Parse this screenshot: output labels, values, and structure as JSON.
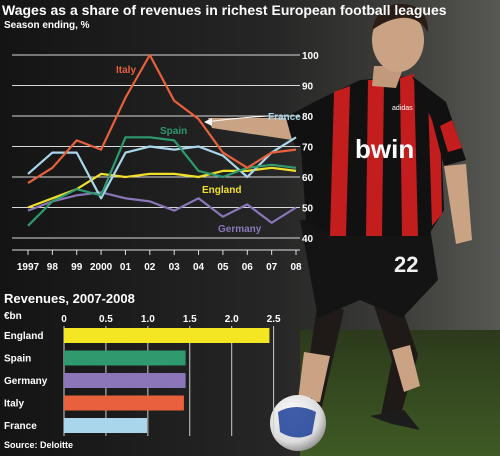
{
  "header": {
    "title": "Wages as a share of revenues in richest European football leagues",
    "subtitle": "Season ending, %"
  },
  "photo": {
    "jersey_sponsor": "bwin",
    "jersey_brand": "adidas",
    "shirt_number": "22"
  },
  "chart_data": [
    {
      "type": "line",
      "title": "Wages as a share of revenues in richest European football leagues",
      "subtitle": "Season ending, %",
      "x": [
        "1997",
        "98",
        "99",
        "2000",
        "01",
        "02",
        "03",
        "04",
        "05",
        "06",
        "07",
        "08"
      ],
      "ylim": [
        40,
        100
      ],
      "yticks": [
        40,
        50,
        60,
        70,
        80,
        90,
        100
      ],
      "grid": true,
      "series": [
        {
          "name": "Italy",
          "color": "#e8613c",
          "values": [
            58,
            63,
            72,
            69,
            86,
            100,
            85,
            79,
            68,
            63,
            68,
            69
          ]
        },
        {
          "name": "Spain",
          "color": "#2e9a6e",
          "values": [
            44,
            52,
            56,
            54,
            73,
            73,
            72,
            62,
            60,
            63,
            64,
            63
          ]
        },
        {
          "name": "France",
          "color": "#a9d6ea",
          "values": [
            61,
            68,
            68,
            53,
            68,
            70,
            69,
            70,
            67,
            60,
            68,
            73
          ]
        },
        {
          "name": "England",
          "color": "#f0e02a",
          "values": [
            50,
            53,
            56,
            61,
            60,
            61,
            61,
            60,
            62,
            62,
            63,
            62
          ]
        },
        {
          "name": "Germany",
          "color": "#8a76b8",
          "values": [
            49,
            52,
            54,
            55,
            53,
            52,
            49,
            53,
            47,
            51,
            45,
            50
          ]
        }
      ]
    },
    {
      "type": "bar",
      "orientation": "horizontal",
      "title": "Revenues, 2007-2008",
      "unit": "€bn",
      "categories": [
        "England",
        "Spain",
        "Germany",
        "Italy",
        "France"
      ],
      "values": [
        2.45,
        1.45,
        1.45,
        1.43,
        0.99
      ],
      "colors": [
        "#f5e623",
        "#2e9a6e",
        "#8a76b8",
        "#e8613c",
        "#a9d6ea"
      ],
      "xlim": [
        0,
        2.6
      ],
      "xticks": [
        "0",
        "0.5",
        "1.0",
        "1.5",
        "2.0",
        "2.5"
      ],
      "grid": true,
      "source": "Source: Deloitte"
    }
  ]
}
